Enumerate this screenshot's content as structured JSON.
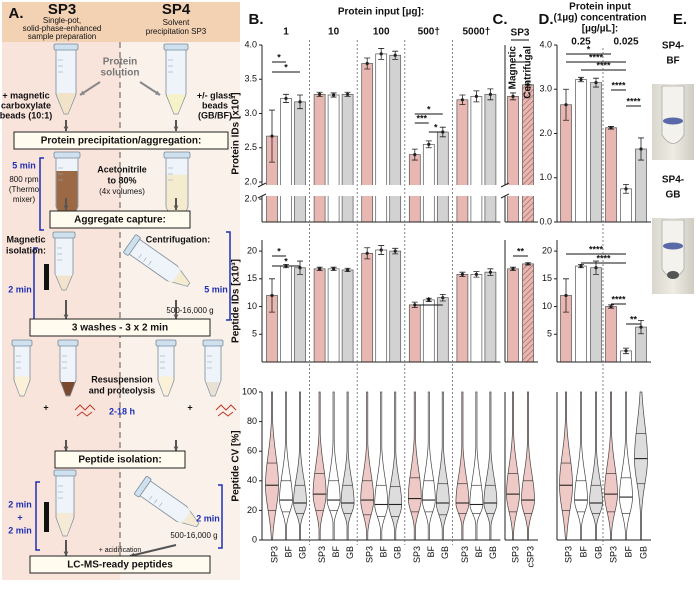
{
  "panels": {
    "a": "A.",
    "b": "B.",
    "c": "C.",
    "d": "D.",
    "e": "E."
  },
  "workflow": {
    "sp3_title": "SP3",
    "sp3_subtitle": [
      "Single-pot,",
      "solid-phase-enhanced",
      "sample preparation"
    ],
    "sp4_title": "SP4",
    "sp4_subtitle": [
      "Solvent",
      "precipitation SP3"
    ],
    "protein_solution": [
      "Protein",
      "solution"
    ],
    "sp3_beads": [
      "+ magnetic",
      "carboxylate",
      "beads (10:1)"
    ],
    "sp4_beads": [
      "+/- glass",
      "beads",
      "(GB/BF)"
    ],
    "steps": [
      "Protein precipitation/aggregation:",
      "Aggregate capture:",
      "3 washes - 3 x 2 min",
      "Peptide isolation:",
      "LC-MS-ready peptides"
    ],
    "mixing_time": "5 min",
    "mixing_details": [
      "800 rpm",
      "(Thermo",
      "mixer)"
    ],
    "solvent": [
      "Acetonitrile",
      "to 80%",
      "(4x volumes)"
    ],
    "magnetic": [
      "Magnetic",
      "isolation:"
    ],
    "magnetic_time": "2 min",
    "centrifugation": "Centrifugation:",
    "centrifugation_time": "5 min",
    "centrifugation_speed": "500-16,000 g",
    "digestion": [
      "Resuspension",
      "and proteolysis"
    ],
    "digestion_time": "2-18 h",
    "plus_signs": [
      "+",
      "+"
    ],
    "peptide_magnetic_time": [
      "2 min",
      "+",
      "2 min"
    ],
    "peptide_centrifugation_time": "2 min",
    "peptide_centrifugation_speed": "500-16,000 g",
    "acidification": "+ acidification"
  },
  "panel_b": {
    "title": "Protein input [µg]:",
    "groups": [
      "1",
      "10",
      "100",
      "500†",
      "5000†"
    ]
  },
  "panel_c": {
    "title": "SP3",
    "methods": [
      "Magnetic",
      "Centrifugal"
    ]
  },
  "panel_d": {
    "title": [
      "Protein input",
      "(1µg) concentration",
      "[µg/µL]:"
    ],
    "groups": [
      "0.25",
      "0.025"
    ]
  },
  "panel_e": {
    "samples": [
      [
        "SP4-",
        "BF"
      ],
      [
        "SP4-",
        "GB"
      ]
    ]
  },
  "chart_data": [
    {
      "type": "bar",
      "ylabel": "Protein IDs [x10³]",
      "values": [
        2.67,
        3.22,
        3.17,
        3.28,
        3.27,
        3.28,
        3.73,
        3.87,
        3.85,
        2.4,
        2.55,
        2.73,
        3.2,
        3.25,
        3.28
      ],
      "errors": [
        0.38,
        0.06,
        0.1,
        0.03,
        0.03,
        0.03,
        0.08,
        0.08,
        0.06,
        0.08,
        0.05,
        0.07,
        0.07,
        0.08,
        0.08
      ],
      "colors": [
        "#e8b7b2",
        "#ffffff",
        "#d2d2d2",
        "#e8b7b2",
        "#ffffff",
        "#d2d2d2",
        "#e8b7b2",
        "#ffffff",
        "#d2d2d2",
        "#e8b7b2",
        "#ffffff",
        "#d2d2d2",
        "#e8b7b2",
        "#ffffff",
        "#d2d2d2"
      ],
      "ylim": [
        2.0,
        4.0
      ],
      "ylim_lower": [
        0,
        2.0
      ],
      "yticks": [
        {
          "value": 2.0,
          "label": "2.0"
        },
        {
          "value": 2.5,
          "label": "2.5"
        },
        {
          "value": 3.0,
          "label": "3.0"
        },
        {
          "value": 3.5,
          "label": "3.5"
        },
        {
          "value": 4.0,
          "label": "4.0"
        }
      ],
      "yticks_lower": [
        {
          "value": 2.0,
          "label": "2.0"
        }
      ],
      "annotations": [
        "*",
        "*",
        "*",
        "***",
        "*"
      ]
    },
    {
      "type": "bar",
      "ylabel": "Peptide IDs [x10³]",
      "values": [
        12.0,
        17.3,
        17.0,
        16.8,
        16.8,
        16.6,
        19.6,
        20.2,
        20.0,
        10.3,
        11.2,
        11.6,
        15.8,
        15.8,
        16.2
      ],
      "errors": [
        3.0,
        0.3,
        1.2,
        0.3,
        0.3,
        0.3,
        1.0,
        0.8,
        0.5,
        0.5,
        0.3,
        0.6,
        0.4,
        0.5,
        0.6
      ],
      "colors": [
        "#e8b7b2",
        "#ffffff",
        "#d2d2d2",
        "#e8b7b2",
        "#ffffff",
        "#d2d2d2",
        "#e8b7b2",
        "#ffffff",
        "#d2d2d2",
        "#e8b7b2",
        "#ffffff",
        "#d2d2d2",
        "#e8b7b2",
        "#ffffff",
        "#d2d2d2"
      ],
      "ylim": [
        0,
        22
      ],
      "yticks": [
        5,
        10,
        15,
        20
      ],
      "annotations": [
        "*",
        "*",
        "*"
      ]
    },
    {
      "type": "violin",
      "ylabel": "Peptide CV [%]",
      "categories": [
        "SP3",
        "BF",
        "GB",
        "SP3",
        "BF",
        "GB",
        "SP3",
        "BF",
        "GB",
        "SP3",
        "BF",
        "GB",
        "SP3",
        "BF",
        "GB"
      ],
      "q1": [
        20,
        19,
        18,
        20,
        20,
        18,
        17,
        16,
        16,
        19,
        19,
        17,
        18,
        18,
        18
      ],
      "median": [
        37,
        27,
        25,
        31,
        27,
        25,
        27,
        24,
        24,
        28,
        27,
        25,
        25,
        24,
        25
      ],
      "q3": [
        52,
        40,
        37,
        45,
        40,
        37,
        40,
        37,
        36,
        42,
        40,
        38,
        38,
        37,
        37
      ],
      "colors": [
        "#e8b7b2",
        "#ffffff",
        "#d2d2d2",
        "#e8b7b2",
        "#ffffff",
        "#d2d2d2",
        "#e8b7b2",
        "#ffffff",
        "#d2d2d2",
        "#e8b7b2",
        "#ffffff",
        "#d2d2d2",
        "#e8b7b2",
        "#ffffff",
        "#d2d2d2"
      ],
      "ylim": [
        0,
        100
      ],
      "yticks": [
        0,
        20,
        40,
        60,
        80,
        100
      ]
    },
    {
      "type": "bar",
      "values": [
        3.25,
        3.42
      ],
      "errors": [
        0.05,
        0.04
      ],
      "colors": [
        "#e8b7b2",
        "#e8b7b2"
      ],
      "hatch": [
        false,
        true
      ],
      "ylim": [
        2.0,
        4.0
      ],
      "ylim_lower": [
        0,
        2.0
      ],
      "annotations": [
        "*"
      ]
    },
    {
      "type": "bar",
      "values": [
        16.8,
        17.7
      ],
      "errors": [
        0.3,
        0.2
      ],
      "colors": [
        "#e8b7b2",
        "#e8b7b2"
      ],
      "hatch": [
        false,
        true
      ],
      "ylim": [
        0,
        22
      ],
      "annotations": [
        "**"
      ]
    },
    {
      "type": "violin",
      "categories": [
        "SP3",
        "cSP3"
      ],
      "q1": [
        19,
        18
      ],
      "median": [
        31,
        27
      ],
      "q3": [
        45,
        40
      ],
      "colors": [
        "#e8b7b2",
        "#e8b7b2"
      ],
      "ylim": [
        0,
        100
      ]
    },
    {
      "type": "bar",
      "values": [
        2.65,
        3.22,
        3.15,
        2.13,
        0.75,
        1.65
      ],
      "errors": [
        0.35,
        0.05,
        0.1,
        0.03,
        0.1,
        0.25
      ],
      "colors": [
        "#e8b7b2",
        "#ffffff",
        "#d2d2d2",
        "#e8b7b2",
        "#ffffff",
        "#d2d2d2"
      ],
      "ylim": [
        0,
        4.0
      ],
      "yticks": [
        {
          "value": 0,
          "label": "0.0"
        },
        {
          "value": 1.0,
          "label": "1.0"
        },
        {
          "value": 2.0,
          "label": "2.0"
        },
        {
          "value": 3.0,
          "label": "3.0"
        },
        {
          "value": 4.0,
          "label": "4.0"
        }
      ],
      "annotations": [
        "*",
        "****",
        "****",
        "****",
        "****"
      ]
    },
    {
      "type": "bar",
      "values": [
        12.0,
        17.3,
        17.0,
        10.0,
        2.0,
        6.3
      ],
      "errors": [
        3.0,
        0.3,
        1.2,
        0.3,
        0.5,
        1.2
      ],
      "colors": [
        "#e8b7b2",
        "#ffffff",
        "#d2d2d2",
        "#e8b7b2",
        "#ffffff",
        "#d2d2d2"
      ],
      "ylim": [
        0,
        22
      ],
      "yticks": [
        5,
        10,
        15,
        20
      ],
      "annotations": [
        "****",
        "****",
        "****",
        "**"
      ]
    },
    {
      "type": "violin",
      "categories": [
        "SP3",
        "BF",
        "GB",
        "SP3",
        "BF",
        "GB"
      ],
      "q1": [
        20,
        19,
        18,
        19,
        18,
        38
      ],
      "median": [
        37,
        27,
        25,
        31,
        29,
        55
      ],
      "q3": [
        52,
        40,
        37,
        45,
        42,
        72
      ],
      "colors": [
        "#e8b7b2",
        "#ffffff",
        "#d2d2d2",
        "#e8b7b2",
        "#ffffff",
        "#d2d2d2"
      ],
      "ylim": [
        0,
        100
      ]
    }
  ]
}
